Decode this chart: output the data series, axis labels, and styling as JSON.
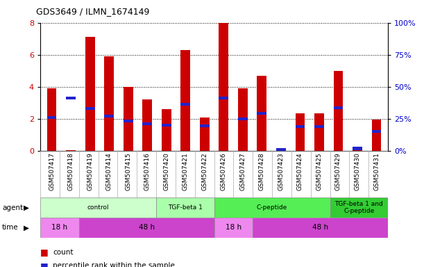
{
  "title": "GDS3649 / ILMN_1674149",
  "samples": [
    "GSM507417",
    "GSM507418",
    "GSM507419",
    "GSM507414",
    "GSM507415",
    "GSM507416",
    "GSM507420",
    "GSM507421",
    "GSM507422",
    "GSM507426",
    "GSM507427",
    "GSM507428",
    "GSM507423",
    "GSM507424",
    "GSM507425",
    "GSM507429",
    "GSM507430",
    "GSM507431"
  ],
  "count_values": [
    3.9,
    0.05,
    7.1,
    5.9,
    4.0,
    3.2,
    2.6,
    6.3,
    2.1,
    8.0,
    3.9,
    4.7,
    0.05,
    2.35,
    2.35,
    5.0,
    0.15,
    1.95
  ],
  "percentile_values": [
    2.1,
    3.3,
    2.65,
    2.15,
    1.85,
    1.7,
    1.6,
    2.9,
    1.55,
    3.3,
    2.0,
    2.35,
    0.1,
    1.5,
    1.5,
    2.7,
    0.15,
    1.2
  ],
  "ylim": [
    0,
    8
  ],
  "yticks": [
    0,
    2,
    4,
    6,
    8
  ],
  "y2ticks": [
    0,
    25,
    50,
    75,
    100
  ],
  "bar_color": "#cc0000",
  "percentile_color": "#2222cc",
  "agent_groups": [
    {
      "label": "control",
      "start": 0,
      "end": 6,
      "color": "#ccffcc"
    },
    {
      "label": "TGF-beta 1",
      "start": 6,
      "end": 9,
      "color": "#aaffaa"
    },
    {
      "label": "C-peptide",
      "start": 9,
      "end": 15,
      "color": "#55ee55"
    },
    {
      "label": "TGF-beta 1 and\nC-peptide",
      "start": 15,
      "end": 18,
      "color": "#33cc33"
    }
  ],
  "time_groups": [
    {
      "label": "18 h",
      "start": 0,
      "end": 2,
      "color": "#ee88ee"
    },
    {
      "label": "48 h",
      "start": 2,
      "end": 9,
      "color": "#cc44cc"
    },
    {
      "label": "18 h",
      "start": 9,
      "end": 11,
      "color": "#ee88ee"
    },
    {
      "label": "48 h",
      "start": 11,
      "end": 18,
      "color": "#cc44cc"
    }
  ],
  "tick_label_color_left": "#cc0000",
  "tick_label_color_right": "#0000cc"
}
